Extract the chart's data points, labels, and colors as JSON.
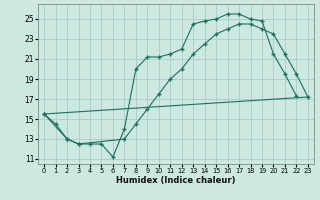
{
  "xlabel": "Humidex (Indice chaleur)",
  "bg_color": "#cce8e0",
  "grid_color": "#aaccc4",
  "line_color": "#1a7060",
  "xlim": [
    -0.5,
    23.5
  ],
  "ylim": [
    10.5,
    26.5
  ],
  "xticks": [
    0,
    1,
    2,
    3,
    4,
    5,
    6,
    7,
    8,
    9,
    10,
    11,
    12,
    13,
    14,
    15,
    16,
    17,
    18,
    19,
    20,
    21,
    22,
    23
  ],
  "yticks": [
    11,
    13,
    15,
    17,
    19,
    21,
    23,
    25
  ],
  "line1_x": [
    0,
    1,
    2,
    3,
    4,
    5,
    6,
    7,
    8,
    9,
    10,
    11,
    12,
    13,
    14,
    15,
    16,
    17,
    18,
    19,
    20,
    21,
    22
  ],
  "line1_y": [
    15.5,
    14.5,
    13.0,
    12.5,
    12.5,
    12.5,
    11.2,
    14.0,
    20.0,
    21.2,
    21.2,
    21.5,
    22.0,
    24.5,
    24.8,
    25.0,
    25.5,
    25.5,
    25.0,
    24.8,
    21.5,
    19.5,
    17.3
  ],
  "line2_x": [
    0,
    2,
    3,
    7,
    8,
    9,
    10,
    11,
    12,
    13,
    14,
    15,
    16,
    17,
    18,
    19,
    20,
    21,
    22,
    23
  ],
  "line2_y": [
    15.5,
    13.0,
    12.5,
    13.0,
    14.5,
    16.0,
    17.5,
    19.0,
    20.0,
    21.5,
    22.5,
    23.5,
    24.0,
    24.5,
    24.5,
    24.0,
    23.5,
    21.5,
    19.5,
    17.2
  ],
  "line3_x": [
    0,
    23
  ],
  "line3_y": [
    15.5,
    17.2
  ]
}
